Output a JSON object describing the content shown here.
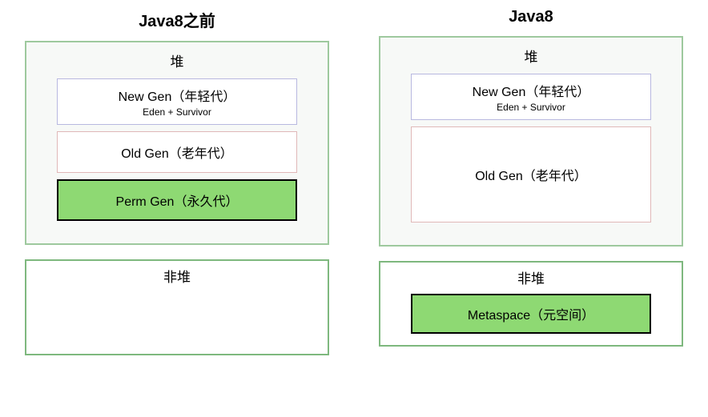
{
  "left": {
    "title": "Java8之前",
    "heap": {
      "label": "堆",
      "border_color": "#9ec99e",
      "background_color": "#f7f9f7",
      "newgen": {
        "label": "New Gen（年轻代）",
        "sublabel": "Eden + Survivor",
        "border_color": "#b8b8e0",
        "background_color": "#ffffff"
      },
      "oldgen": {
        "label": "Old Gen（老年代）",
        "border_color": "#e0b8b8",
        "background_color": "#ffffff"
      },
      "permgen": {
        "label": "Perm Gen（永久代）",
        "border_color": "#000000",
        "background_color": "#8ed973"
      }
    },
    "nonheap": {
      "label": "非堆",
      "border_color": "#7eb87e",
      "background_color": "#ffffff"
    }
  },
  "right": {
    "title": "Java8",
    "heap": {
      "label": "堆",
      "border_color": "#9ec99e",
      "background_color": "#f7f9f7",
      "newgen": {
        "label": "New Gen（年轻代）",
        "sublabel": "Eden + Survivor",
        "border_color": "#b8b8e0",
        "background_color": "#ffffff"
      },
      "oldgen": {
        "label": "Old Gen（老年代）",
        "border_color": "#e0b8b8",
        "background_color": "#ffffff"
      }
    },
    "nonheap": {
      "label": "非堆",
      "border_color": "#7eb87e",
      "background_color": "#ffffff",
      "metaspace": {
        "label": "Metaspace（元空间）",
        "border_color": "#000000",
        "background_color": "#8ed973"
      }
    }
  }
}
